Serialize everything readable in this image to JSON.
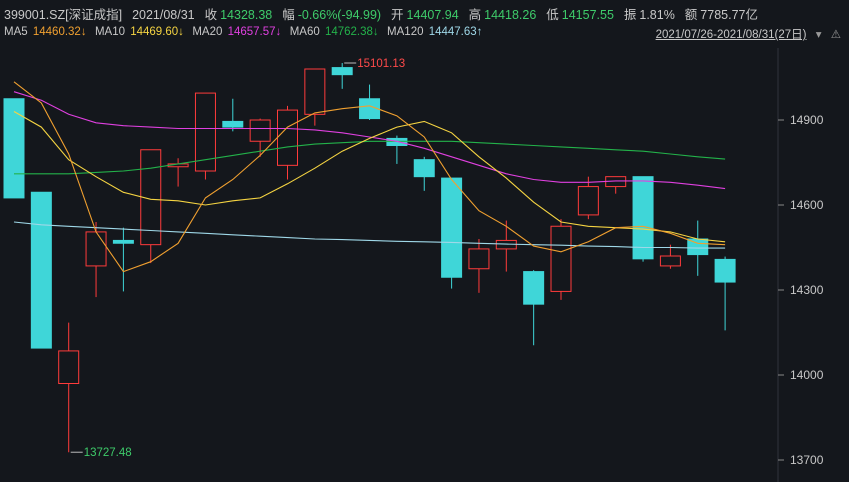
{
  "header": {
    "code": "399001.SZ[深证成指]",
    "date": "2021/08/31",
    "close_label": "收",
    "close": "14328.38",
    "change_label": "幅",
    "change": "-0.66%(-94.99)",
    "open_label": "开",
    "open": "14407.94",
    "high_label": "高",
    "high": "14418.26",
    "low_label": "低",
    "low": "14157.55",
    "amp_label": "振",
    "amp": "1.81%",
    "amount_label": "额",
    "amount": "7785.77亿"
  },
  "ma_bar": {
    "ma5_label": "MA5",
    "ma5": "14460.32↓",
    "ma10_label": "MA10",
    "ma10": "14469.60↓",
    "ma20_label": "MA20",
    "ma20": "14657.57↓",
    "ma60_label": "MA60",
    "ma60": "14762.38↓",
    "ma120_label": "MA120",
    "ma120": "14447.63↑",
    "range": "2021/07/26-2021/08/31(27日)",
    "icons": [
      "chevron-down-icon",
      "triangle-warning-icon"
    ]
  },
  "colors": {
    "bg": "#14171c",
    "up": "#ff3b3b",
    "down": "#3fd6d8",
    "ma5": "#ffffff",
    "ma10": "#f5d442",
    "ma20": "#e040e0",
    "ma60": "#23b24a",
    "ma120": "#9fd8e8",
    "grid": "#2a2e36",
    "axis_text": "#c8c8c8",
    "hi_label": "#ff4a4a",
    "lo_label": "#3ecb6a"
  },
  "chart_data": {
    "type": "candlestick",
    "y_ticks": [
      14900,
      14600,
      14300,
      14000,
      13700
    ],
    "ylim": [
      13670,
      15230
    ],
    "high_marker": "15101.13",
    "low_marker": "13727.48",
    "candles": [
      {
        "o": 14975,
        "c": 14625,
        "h": 14975,
        "l": 14625
      },
      {
        "o": 14645,
        "c": 14095,
        "h": 14640,
        "l": 14095
      },
      {
        "o": 13970,
        "c": 14085,
        "h": 14185,
        "l": 13727.48
      },
      {
        "o": 14385,
        "c": 14505,
        "h": 14540,
        "l": 14275
      },
      {
        "o": 14475,
        "c": 14465,
        "h": 14520,
        "l": 14295
      },
      {
        "o": 14460,
        "c": 14795,
        "h": 14795,
        "l": 14395
      },
      {
        "o": 14735,
        "c": 14745,
        "h": 14765,
        "l": 14665
      },
      {
        "o": 14720,
        "c": 14995,
        "h": 14995,
        "l": 14690
      },
      {
        "o": 14895,
        "c": 14875,
        "h": 14975,
        "l": 14860
      },
      {
        "o": 14825,
        "c": 14900,
        "h": 14905,
        "l": 14770
      },
      {
        "o": 14740,
        "c": 14935,
        "h": 14950,
        "l": 14690
      },
      {
        "o": 14920,
        "c": 15080,
        "h": 15080,
        "l": 14880
      },
      {
        "o": 15085,
        "c": 15060,
        "h": 15101.13,
        "l": 15010
      },
      {
        "o": 14975,
        "c": 14905,
        "h": 15025,
        "l": 14900
      },
      {
        "o": 14835,
        "c": 14810,
        "h": 14845,
        "l": 14745
      },
      {
        "o": 14760,
        "c": 14700,
        "h": 14770,
        "l": 14650
      },
      {
        "o": 14695,
        "c": 14345,
        "h": 14695,
        "l": 14305
      },
      {
        "o": 14375,
        "c": 14445,
        "h": 14480,
        "l": 14290
      },
      {
        "o": 14445,
        "c": 14475,
        "h": 14545,
        "l": 14365
      },
      {
        "o": 14365,
        "c": 14250,
        "h": 14370,
        "l": 14105
      },
      {
        "o": 14295,
        "c": 14525,
        "h": 14550,
        "l": 14265
      },
      {
        "o": 14565,
        "c": 14665,
        "h": 14700,
        "l": 14550
      },
      {
        "o": 14665,
        "c": 14700,
        "h": 14700,
        "l": 14640
      },
      {
        "o": 14700,
        "c": 14410,
        "h": 14700,
        "l": 14400
      },
      {
        "o": 14385,
        "c": 14420,
        "h": 14460,
        "l": 14375
      },
      {
        "o": 14480,
        "c": 14425,
        "h": 14545,
        "l": 14350
      },
      {
        "o": 14408,
        "c": 14328,
        "h": 14418,
        "l": 14157.55
      }
    ],
    "ma5": [
      15035,
      14960,
      14780,
      14505,
      14365,
      14400,
      14465,
      14625,
      14690,
      14775,
      14875,
      14925,
      14940,
      14950,
      14915,
      14840,
      14690,
      14580,
      14525,
      14455,
      14435,
      14470,
      14520,
      14525,
      14500,
      14465,
      14460
    ],
    "ma10": [
      14930,
      14875,
      14760,
      14700,
      14645,
      14620,
      14615,
      14600,
      14615,
      14625,
      14675,
      14730,
      14790,
      14835,
      14875,
      14895,
      14855,
      14770,
      14695,
      14610,
      14540,
      14525,
      14520,
      14515,
      14505,
      14480,
      14470
    ],
    "ma20": [
      15000,
      14970,
      14920,
      14890,
      14880,
      14875,
      14870,
      14870,
      14870,
      14870,
      14870,
      14865,
      14855,
      14840,
      14825,
      14800,
      14770,
      14740,
      14710,
      14690,
      14680,
      14680,
      14685,
      14685,
      14680,
      14670,
      14658
    ],
    "ma60": [
      14710,
      14710,
      14710,
      14715,
      14720,
      14730,
      14745,
      14760,
      14775,
      14790,
      14805,
      14815,
      14820,
      14825,
      14825,
      14825,
      14825,
      14820,
      14815,
      14810,
      14805,
      14800,
      14795,
      14790,
      14780,
      14770,
      14762
    ],
    "ma120": [
      14540,
      14530,
      14525,
      14520,
      14515,
      14510,
      14505,
      14500,
      14495,
      14490,
      14485,
      14480,
      14478,
      14475,
      14472,
      14470,
      14468,
      14465,
      14462,
      14460,
      14458,
      14455,
      14453,
      14450,
      14450,
      14448,
      14448
    ]
  }
}
